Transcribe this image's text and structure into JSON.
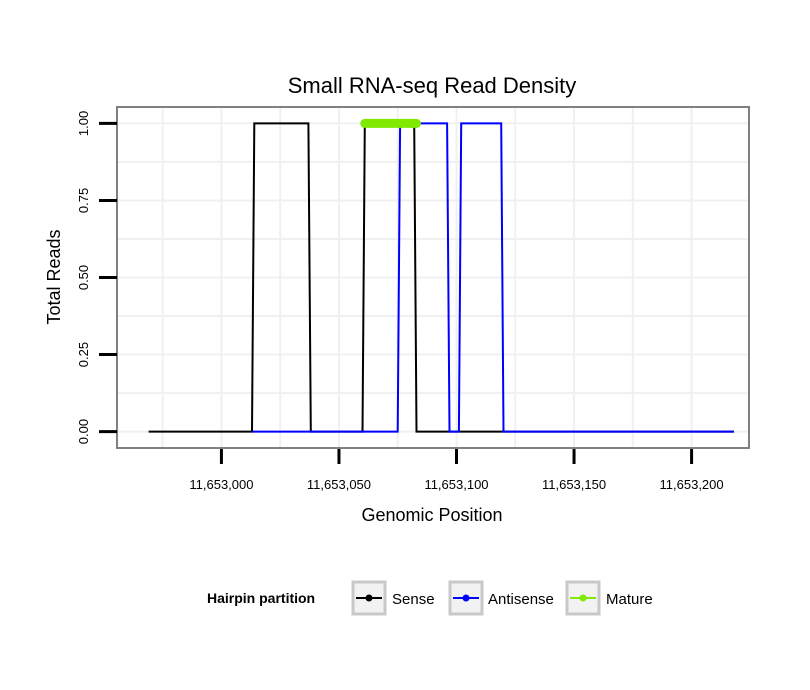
{
  "chart_data": {
    "type": "line",
    "title": "Small RNA-seq Read Density",
    "xlabel": "Genomic Position",
    "ylabel": "Total Reads",
    "xlim": [
      11652956,
      11653224
    ],
    "ylim": [
      -0.05,
      1.05
    ],
    "x_ticks": [
      11653000,
      11653050,
      11653100,
      11653150,
      11653200
    ],
    "x_tick_labels": [
      "11,653,000",
      "11,653,050",
      "11,653,100",
      "11,653,150",
      "11,653,200"
    ],
    "y_ticks": [
      0,
      0.25,
      0.5,
      0.75,
      1.0
    ],
    "y_tick_labels": [
      "0.00",
      "0.25",
      "0.50",
      "0.75",
      "1.00"
    ],
    "grid": true,
    "legend": {
      "title": "Hairpin partition",
      "position": "bottom",
      "entries": [
        "Sense",
        "Antisense",
        "Mature"
      ]
    },
    "series": [
      {
        "name": "Sense",
        "color": "#000000",
        "x": [
          11652969,
          11653013,
          11653014,
          11653037,
          11653038,
          11653060,
          11653061,
          11653082,
          11653083,
          11653218
        ],
        "y": [
          0,
          0,
          1,
          1,
          0,
          0,
          1,
          1,
          0,
          0
        ]
      },
      {
        "name": "Antisense",
        "color": "#0000ff",
        "x": [
          11653013,
          11653075,
          11653076,
          11653096,
          11653097,
          11653101,
          11653102,
          11653119,
          11653120,
          11653218
        ],
        "y": [
          0,
          0,
          1,
          1,
          0,
          0,
          1,
          1,
          0,
          0
        ]
      },
      {
        "name": "Mature",
        "color": "#7fea00",
        "x": [
          11653061,
          11653083
        ],
        "y": [
          1,
          1
        ]
      }
    ]
  }
}
